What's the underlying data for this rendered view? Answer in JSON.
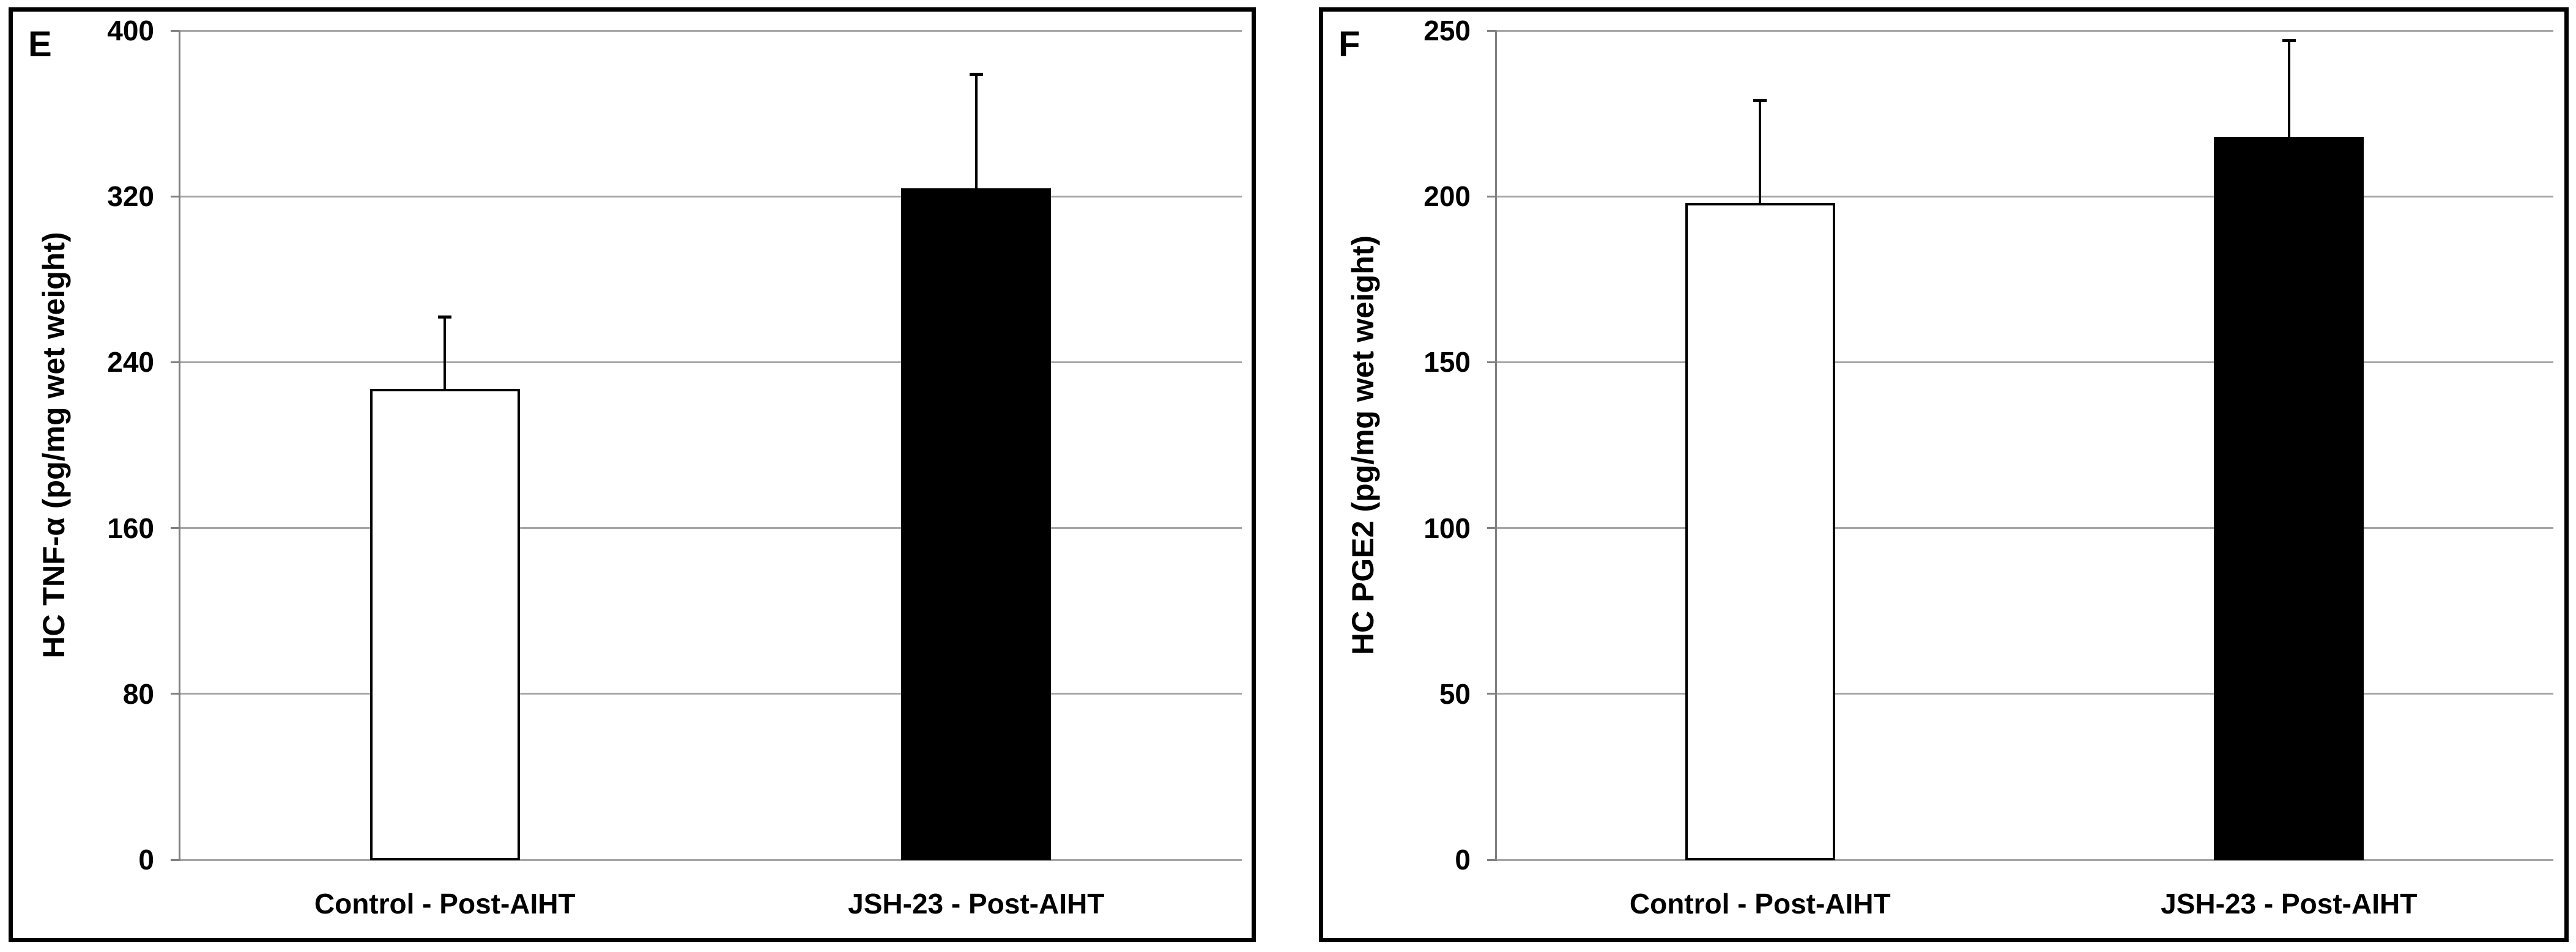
{
  "figure": {
    "background": "#ffffff",
    "panel_border_color": "#000000",
    "gridline_color": "#a6a6a6",
    "axis_color": "#808080",
    "error_bar_color": "#000000",
    "bar_outline_color": "#000000"
  },
  "chart_data": [
    {
      "type": "bar",
      "panel_label": "E",
      "title": "",
      "xlabel": "",
      "ylabel": "HC TNF-α (pg/mg wet weight)",
      "categories": [
        "Control - Post-AIHT",
        "JSH-23 - Post-AIHT"
      ],
      "values": [
        227,
        324
      ],
      "error_plus": [
        35,
        55
      ],
      "yticks": [
        0,
        80,
        160,
        240,
        320,
        400
      ],
      "ylim": [
        0,
        400
      ],
      "bar_colors": [
        "#ffffff",
        "#000000"
      ],
      "grid": true,
      "legend_position": "none"
    },
    {
      "type": "bar",
      "panel_label": "F",
      "title": "",
      "xlabel": "",
      "ylabel": "HC PGE2 (pg/mg wet weight)",
      "categories": [
        "Control - Post-AIHT",
        "JSH-23 - Post-AIHT"
      ],
      "values": [
        198,
        218
      ],
      "error_plus": [
        31,
        29
      ],
      "yticks": [
        0,
        50,
        100,
        150,
        200,
        250
      ],
      "ylim": [
        0,
        250
      ],
      "bar_colors": [
        "#ffffff",
        "#000000"
      ],
      "grid": true,
      "legend_position": "none"
    }
  ]
}
